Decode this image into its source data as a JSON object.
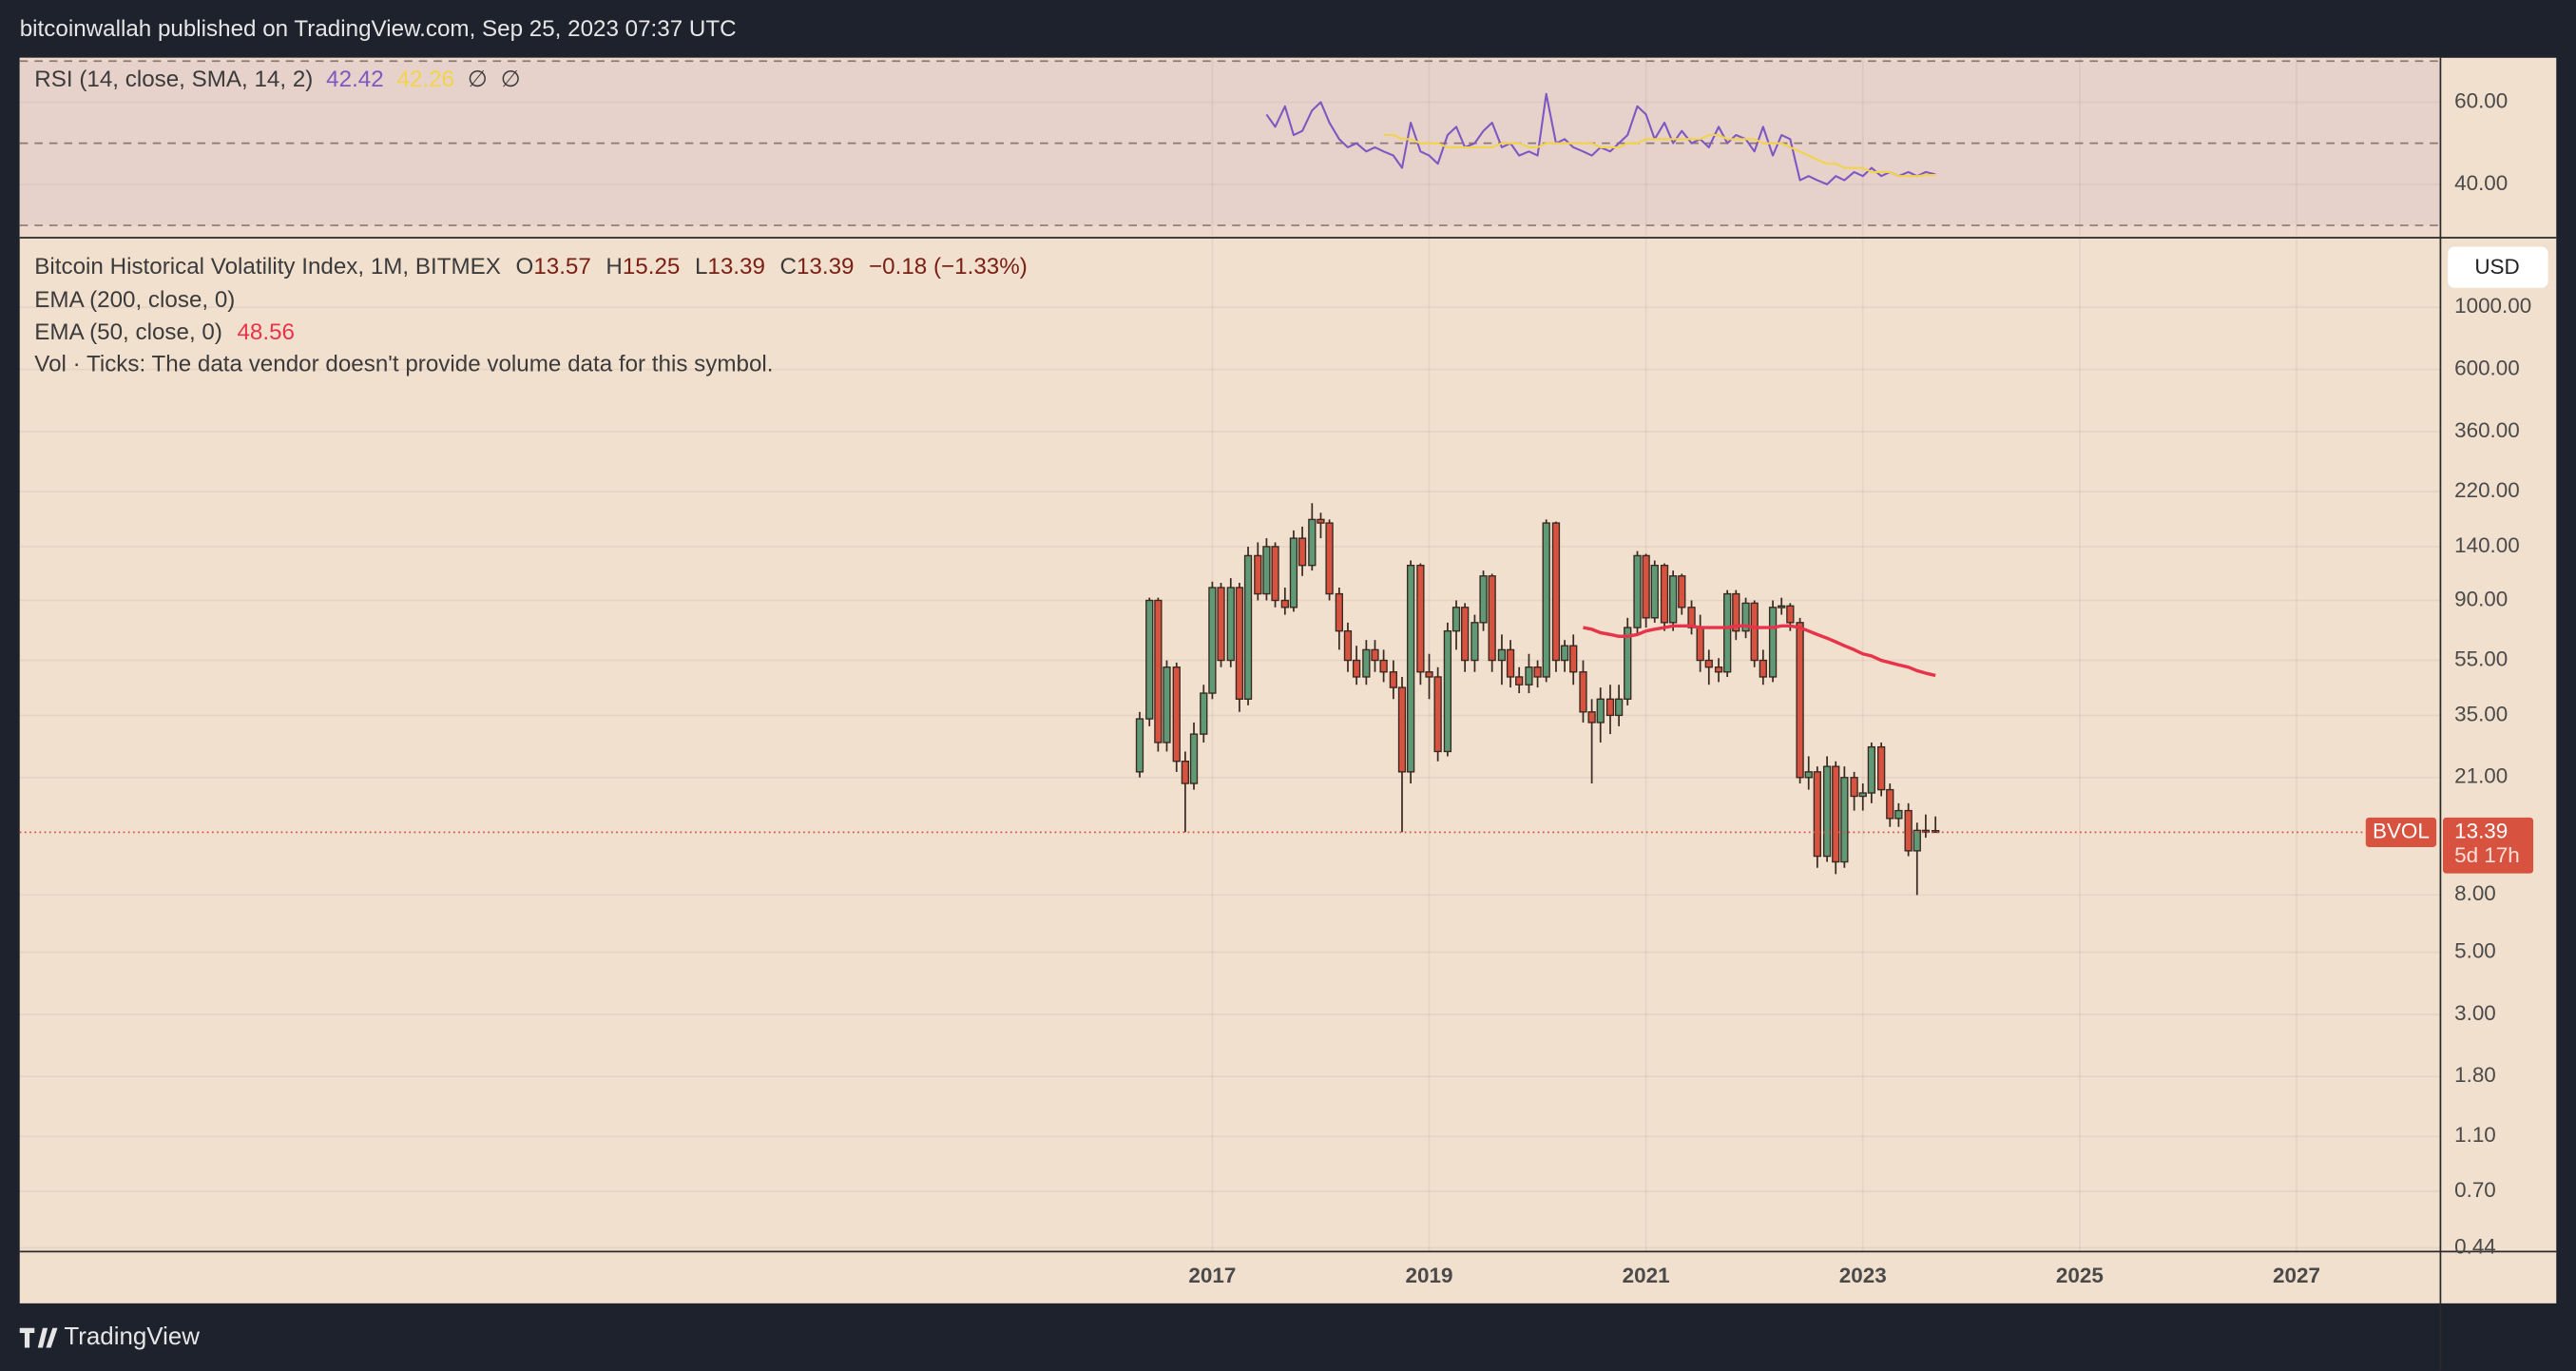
{
  "header": "bitcoinwallah published on TradingView.com, Sep 25, 2023 07:37 UTC",
  "footer": "TradingView",
  "currency": "USD",
  "chart_data": {
    "type": "candlestick",
    "title": "Bitcoin Historical Volatility Index, 1M, BITMEX",
    "ohlc_labels": [
      "O",
      "H",
      "L",
      "C"
    ],
    "change_label": "−0.18 (−1.33%)",
    "symbol": "BVOL",
    "countdown": "5d 17h",
    "log_scale": true,
    "grid": true,
    "up_color": "#5f9a76",
    "down_color": "#d7533f",
    "border_color": "#3a2a22",
    "xlim": [
      2006,
      2028.32
    ],
    "xticks": [
      2017,
      2019,
      2021,
      2023,
      2025,
      2027
    ],
    "ylim": [
      0.43,
      1760
    ],
    "yticks": [
      {
        "value": 1000,
        "label": "1000.00"
      },
      {
        "value": 600,
        "label": "600.00"
      },
      {
        "value": 360,
        "label": "360.00"
      },
      {
        "value": 220,
        "label": "220.00"
      },
      {
        "value": 140,
        "label": "140.00"
      },
      {
        "value": 90,
        "label": "90.00"
      },
      {
        "value": 55,
        "label": "55.00"
      },
      {
        "value": 35,
        "label": "35.00"
      },
      {
        "value": 21,
        "label": "21.00"
      },
      {
        "value": 8,
        "label": "8.00"
      },
      {
        "value": 5,
        "label": "5.00"
      },
      {
        "value": 3,
        "label": "3.00"
      },
      {
        "value": 1.8,
        "label": "1.80"
      },
      {
        "value": 1.1,
        "label": "1.10"
      },
      {
        "value": 0.7,
        "label": "0.70"
      },
      {
        "value": 0.44,
        "label": "0.44"
      }
    ],
    "x": [
      2016.33,
      2016.42,
      2016.5,
      2016.58,
      2016.67,
      2016.75,
      2016.83,
      2016.92,
      2017,
      2017.08,
      2017.17,
      2017.25,
      2017.33,
      2017.42,
      2017.5,
      2017.58,
      2017.67,
      2017.75,
      2017.83,
      2017.92,
      2018,
      2018.08,
      2018.17,
      2018.25,
      2018.33,
      2018.42,
      2018.5,
      2018.58,
      2018.67,
      2018.75,
      2018.83,
      2018.92,
      2019,
      2019.08,
      2019.17,
      2019.25,
      2019.33,
      2019.42,
      2019.5,
      2019.58,
      2019.67,
      2019.75,
      2019.83,
      2019.92,
      2020,
      2020.08,
      2020.17,
      2020.25,
      2020.33,
      2020.42,
      2020.5,
      2020.58,
      2020.67,
      2020.75,
      2020.83,
      2020.92,
      2021,
      2021.08,
      2021.17,
      2021.25,
      2021.33,
      2021.42,
      2021.5,
      2021.58,
      2021.67,
      2021.75,
      2021.83,
      2021.92,
      2022,
      2022.08,
      2022.17,
      2022.25,
      2022.33,
      2022.42,
      2022.5,
      2022.58,
      2022.67,
      2022.75,
      2022.83,
      2022.92,
      2023,
      2023.08,
      2023.17,
      2023.25,
      2023.33,
      2023.42,
      2023.5,
      2023.58,
      2023.67
    ],
    "open": [
      22,
      34,
      90,
      28,
      52,
      24,
      20,
      30,
      42,
      100,
      55,
      100,
      40,
      130,
      95,
      140,
      90,
      85,
      150,
      120,
      175,
      170,
      95,
      70,
      55,
      48,
      60,
      55,
      50,
      44,
      22,
      120,
      50,
      48,
      26,
      70,
      85,
      55,
      75,
      110,
      55,
      60,
      48,
      45,
      52,
      48,
      170,
      55,
      62,
      50,
      36,
      33,
      40,
      35,
      40,
      72,
      130,
      78,
      120,
      75,
      110,
      85,
      72,
      55,
      52,
      50,
      95,
      70,
      88,
      55,
      48,
      85,
      86,
      75,
      21,
      22,
      11,
      23,
      10.5,
      21,
      18,
      18.5,
      27,
      19,
      15,
      16,
      11.5,
      13.6,
      13.57
    ],
    "high": [
      36,
      92,
      92,
      55,
      54,
      26,
      33,
      45,
      105,
      104,
      108,
      104,
      140,
      145,
      150,
      145,
      100,
      160,
      165,
      200,
      185,
      175,
      100,
      75,
      62,
      65,
      65,
      60,
      55,
      48,
      125,
      122,
      58,
      52,
      75,
      90,
      88,
      80,
      115,
      112,
      68,
      65,
      52,
      58,
      55,
      175,
      172,
      65,
      68,
      55,
      40,
      44,
      45,
      45,
      78,
      135,
      132,
      125,
      122,
      115,
      112,
      90,
      80,
      60,
      56,
      98,
      98,
      92,
      90,
      60,
      90,
      92,
      88,
      78,
      25,
      23,
      25,
      24,
      23,
      22,
      20,
      28,
      28,
      20,
      17,
      17,
      14.5,
      15.5,
      15.25
    ],
    "low": [
      21,
      32,
      26,
      26,
      22,
      13.4,
      19,
      28,
      40,
      52,
      52,
      36,
      38,
      90,
      90,
      85,
      80,
      82,
      110,
      115,
      150,
      90,
      60,
      50,
      45,
      45,
      50,
      46,
      40,
      13.4,
      20,
      45,
      40,
      24,
      25,
      60,
      50,
      50,
      70,
      50,
      45,
      44,
      42,
      42,
      44,
      46,
      50,
      50,
      45,
      33,
      20,
      28,
      30,
      32,
      38,
      68,
      72,
      75,
      70,
      70,
      80,
      68,
      50,
      45,
      46,
      48,
      65,
      66,
      52,
      45,
      46,
      80,
      70,
      20,
      19,
      10,
      10.5,
      9.5,
      10,
      16,
      16,
      17,
      18,
      14,
      14,
      11,
      8,
      12.8,
      13.39
    ],
    "close": [
      34,
      90,
      28,
      52,
      24,
      20,
      30,
      42,
      100,
      55,
      100,
      40,
      130,
      95,
      140,
      90,
      85,
      150,
      120,
      175,
      170,
      95,
      70,
      55,
      48,
      60,
      55,
      50,
      44,
      22,
      120,
      50,
      48,
      26,
      70,
      85,
      55,
      75,
      110,
      55,
      60,
      48,
      45,
      52,
      48,
      170,
      55,
      62,
      50,
      36,
      33,
      40,
      35,
      40,
      72,
      130,
      78,
      120,
      75,
      110,
      85,
      72,
      55,
      52,
      50,
      95,
      70,
      88,
      55,
      48,
      85,
      86,
      75,
      21,
      22,
      11,
      23,
      10.5,
      21,
      18,
      18.5,
      27,
      19,
      15,
      16,
      11.5,
      13.6,
      13.57,
      13.39
    ],
    "ema200": {
      "name": "EMA (200, close, 0)"
    },
    "ema": {
      "name": "EMA (50, close, 0)",
      "color": "#e8344a",
      "values": [
        null,
        null,
        null,
        null,
        null,
        null,
        null,
        null,
        null,
        null,
        null,
        null,
        null,
        null,
        null,
        null,
        null,
        null,
        null,
        null,
        null,
        null,
        null,
        null,
        null,
        null,
        null,
        null,
        null,
        null,
        null,
        null,
        null,
        null,
        null,
        null,
        null,
        null,
        null,
        null,
        null,
        null,
        null,
        null,
        null,
        null,
        null,
        null,
        null,
        72,
        71,
        69,
        68,
        67,
        67,
        68,
        70,
        71,
        72,
        73,
        73,
        73,
        72,
        72,
        72,
        72,
        73,
        73,
        72,
        72,
        72,
        73,
        73,
        72,
        70,
        68,
        66,
        64,
        62,
        60,
        58,
        57,
        55,
        54,
        53,
        52,
        50.5,
        49.5,
        48.56
      ]
    },
    "volume_note": "Vol · Ticks: The data vendor doesn't provide volume data for this symbol.",
    "rsi": {
      "name": "RSI (14, close, SMA, 14, 2)",
      "extra": [
        "∅",
        "∅"
      ],
      "ylim": [
        27.6,
        70.8
      ],
      "yticks": [
        {
          "value": 60,
          "label": "60.00"
        },
        {
          "value": 40,
          "label": "40.00"
        }
      ],
      "levels": [
        70,
        50,
        30
      ],
      "series": [
        {
          "color": "#7e57c2",
          "values": [
            null,
            null,
            null,
            null,
            null,
            null,
            null,
            null,
            null,
            null,
            null,
            null,
            null,
            null,
            57,
            54,
            59,
            52,
            53,
            58,
            60,
            55,
            51,
            49,
            50,
            48,
            49,
            48,
            47,
            44,
            55,
            48,
            47,
            45,
            52,
            54,
            49,
            50,
            53,
            55,
            49,
            50,
            47,
            48,
            47,
            62,
            50,
            51,
            49,
            48,
            47,
            49,
            48,
            50,
            52,
            59,
            57,
            51,
            55,
            50,
            53,
            50,
            51,
            49,
            54,
            50,
            52,
            51,
            48,
            54,
            47,
            52,
            51,
            41,
            42,
            41,
            40,
            42,
            41,
            43,
            42,
            44,
            42,
            43,
            42,
            43,
            42,
            43,
            42.42
          ]
        },
        {
          "color": "#f2d44a",
          "values": [
            null,
            null,
            null,
            null,
            null,
            null,
            null,
            null,
            null,
            null,
            null,
            null,
            null,
            null,
            null,
            null,
            null,
            null,
            null,
            null,
            null,
            null,
            null,
            null,
            null,
            null,
            null,
            52,
            52,
            51,
            51,
            50,
            50,
            50,
            49,
            49,
            49,
            49,
            49,
            49,
            50,
            50,
            50,
            49,
            49,
            50,
            50,
            50,
            50,
            50,
            50,
            49,
            49,
            49,
            50,
            50,
            51,
            51,
            51,
            51,
            51,
            51,
            51,
            52,
            52,
            51,
            51,
            51,
            51,
            50,
            50,
            50,
            49,
            48,
            47,
            46,
            45,
            45,
            44,
            44,
            44,
            43,
            43,
            43,
            42,
            42,
            42,
            42.3,
            42.26
          ]
        }
      ]
    }
  }
}
